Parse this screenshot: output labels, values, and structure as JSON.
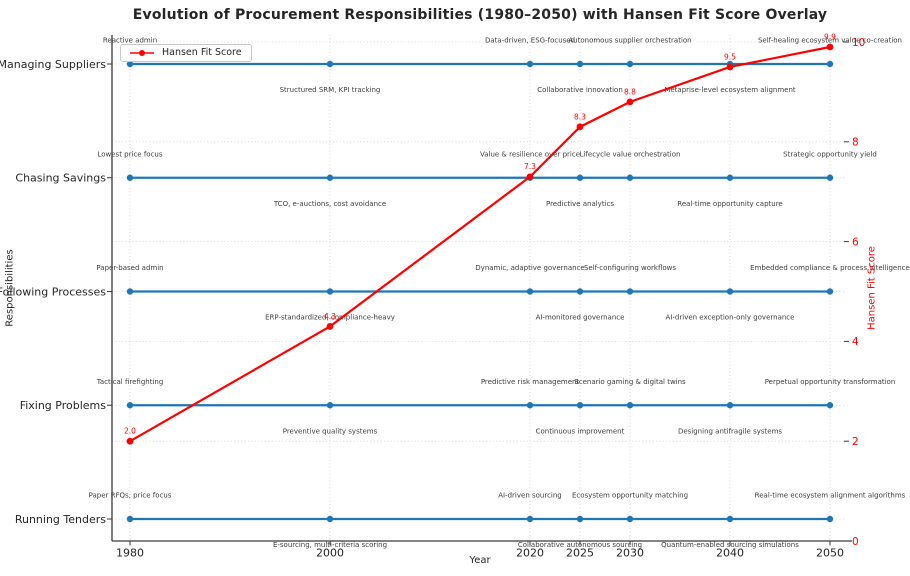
{
  "title": "Evolution of Procurement Responsibilities (1980–2050) with Hansen Fit Score Overlay",
  "legend": {
    "label": "Hansen Fit Score"
  },
  "axes": {
    "x_label": "Year",
    "y_left_label": "Responsibilities",
    "y_right_label": "Hansen Fit Score",
    "x_ticks": [
      "1980",
      "2000",
      "2020",
      "2025",
      "2030",
      "2040",
      "2050"
    ],
    "y_right_ticks": [
      "0",
      "2",
      "4",
      "6",
      "8",
      "10"
    ]
  },
  "colors": {
    "blue": "#1f77b4",
    "red": "#ff0000",
    "annotation": "#3d3d3d",
    "grid": "#cfcfcf",
    "spine": "#3a3a3a",
    "text": "#262626"
  },
  "chart_data": {
    "type": "line",
    "x": [
      1980,
      2000,
      2020,
      2025,
      2030,
      2040,
      2050
    ],
    "xlim": [
      1978.2,
      2051.5
    ],
    "xlabel": "Year",
    "ylabel_left": "Responsibilities",
    "ylabel_right": "Hansen Fit Score",
    "ylim_right": [
      0,
      10
    ],
    "grid": true,
    "legend_position": "upper left",
    "responsibility_rows": [
      {
        "label": "Managing Suppliers",
        "annotations": [
          {
            "year": 1980,
            "side": "above",
            "text": "Reactive admin"
          },
          {
            "year": 2000,
            "side": "below",
            "text": "Structured SRM, KPI tracking"
          },
          {
            "year": 2020,
            "side": "above",
            "text": "Data-driven, ESG-focused"
          },
          {
            "year": 2025,
            "side": "below",
            "text": "Collaborative innovation"
          },
          {
            "year": 2030,
            "side": "above",
            "text": "Autonomous supplier orchestration"
          },
          {
            "year": 2040,
            "side": "below",
            "text": "Metaprise-level ecosystem alignment"
          },
          {
            "year": 2050,
            "side": "above",
            "text": "Self-healing ecosystem value co-creation"
          }
        ]
      },
      {
        "label": "Chasing Savings",
        "annotations": [
          {
            "year": 1980,
            "side": "above",
            "text": "Lowest price focus"
          },
          {
            "year": 2000,
            "side": "below",
            "text": "TCO, e-auctions, cost avoidance"
          },
          {
            "year": 2020,
            "side": "above",
            "text": "Value & resilience over price"
          },
          {
            "year": 2025,
            "side": "below",
            "text": "Predictive analytics"
          },
          {
            "year": 2030,
            "side": "above",
            "text": "Lifecycle value orchestration"
          },
          {
            "year": 2040,
            "side": "below",
            "text": "Real-time opportunity capture"
          },
          {
            "year": 2050,
            "side": "above",
            "text": "Strategic opportunity yield"
          }
        ]
      },
      {
        "label": "Following Processes",
        "annotations": [
          {
            "year": 1980,
            "side": "above",
            "text": "Paper-based admin"
          },
          {
            "year": 2000,
            "side": "below",
            "text": "ERP-standardized, compliance-heavy"
          },
          {
            "year": 2020,
            "side": "above",
            "text": "Dynamic, adaptive governance"
          },
          {
            "year": 2025,
            "side": "below",
            "text": "AI-monitored governance"
          },
          {
            "year": 2030,
            "side": "above",
            "text": "Self-configuring workflows"
          },
          {
            "year": 2040,
            "side": "below",
            "text": "AI-driven exception-only governance"
          },
          {
            "year": 2050,
            "side": "above",
            "text": "Embedded compliance & process intelligence"
          }
        ]
      },
      {
        "label": "Fixing Problems",
        "annotations": [
          {
            "year": 1980,
            "side": "above",
            "text": "Tactical firefighting"
          },
          {
            "year": 2000,
            "side": "below",
            "text": "Preventive quality systems"
          },
          {
            "year": 2020,
            "side": "above",
            "text": "Predictive risk management"
          },
          {
            "year": 2025,
            "side": "below",
            "text": "Continuous improvement"
          },
          {
            "year": 2030,
            "side": "above",
            "text": "Scenario gaming & digital twins"
          },
          {
            "year": 2040,
            "side": "below",
            "text": "Designing antifragile systems"
          },
          {
            "year": 2050,
            "side": "above",
            "text": "Perpetual opportunity transformation"
          }
        ]
      },
      {
        "label": "Running Tenders",
        "annotations": [
          {
            "year": 1980,
            "side": "above",
            "text": "Paper RFQs, price focus"
          },
          {
            "year": 2000,
            "side": "below",
            "text": "E-sourcing, multi-criteria scoring"
          },
          {
            "year": 2020,
            "side": "above",
            "text": "AI-driven sourcing"
          },
          {
            "year": 2025,
            "side": "below",
            "text": "Collaborative autonomous sourcing"
          },
          {
            "year": 2030,
            "side": "above",
            "text": "Ecosystem opportunity matching"
          },
          {
            "year": 2040,
            "side": "below",
            "text": "Quantum-enabled sourcing simulations"
          },
          {
            "year": 2050,
            "side": "above",
            "text": "Real-time ecosystem alignment algorithms"
          }
        ]
      }
    ],
    "series": [
      {
        "name": "Hansen Fit Score",
        "x": [
          1980,
          2000,
          2020,
          2025,
          2030,
          2040,
          2050
        ],
        "values": [
          2.0,
          4.3,
          7.3,
          8.3,
          8.8,
          9.5,
          9.9
        ],
        "point_labels": [
          "2.0",
          "4.3",
          "7.3",
          "8.3",
          "8.8",
          "9.5",
          "9.9"
        ]
      }
    ]
  }
}
